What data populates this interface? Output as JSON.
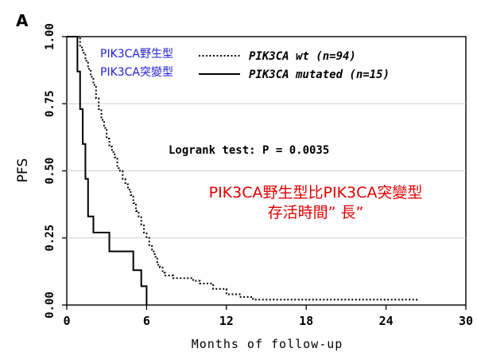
{
  "panel_label": "A",
  "annotation_blue": [
    "PIK3CA野生型",
    "PIK3CA突變型"
  ],
  "annotation_red": [
    "PIK3CA野生型比PIK3CA突變型",
    "存活時間” 長”"
  ],
  "colors": {
    "blue": "#1f1fd6",
    "red": "#e00000",
    "line": "#000000",
    "grid": "#d0d0d0"
  },
  "chart_data": {
    "type": "line",
    "xlabel": "Months of follow-up",
    "ylabel": "PFS",
    "xlim": [
      0,
      30
    ],
    "ylim": [
      0,
      1
    ],
    "xticks": [
      0,
      6,
      12,
      18,
      24,
      30
    ],
    "yticks": [
      0.0,
      0.25,
      0.5,
      0.75,
      1.0
    ],
    "ytick_labels": [
      "0.00",
      "0.25",
      "0.50",
      "0.75",
      "1.00"
    ],
    "grid": true,
    "test_label": "Logrank test: P = 0.0035",
    "legend": [
      {
        "style": "dotted",
        "label": "PIK3CA wt (n=94)"
      },
      {
        "style": "solid",
        "label": "PIK3CA mutated (n=15)"
      }
    ],
    "series": [
      {
        "style": "dotted",
        "x": [
          0,
          0.8,
          1.0,
          1.2,
          1.4,
          1.6,
          1.8,
          2.0,
          2.2,
          2.4,
          2.6,
          2.8,
          3.0,
          3.2,
          3.4,
          3.6,
          3.8,
          4.0,
          4.2,
          4.4,
          4.6,
          4.8,
          5.0,
          5.2,
          5.4,
          5.6,
          5.8,
          6.0,
          6.2,
          6.4,
          6.6,
          6.8,
          7.0,
          7.2,
          7.4,
          7.6,
          8.0,
          8.5,
          9.0,
          9.5,
          10.0,
          11.0,
          12.0,
          12.6,
          13.0,
          14.0,
          15.0,
          17.0,
          20.0,
          24.0,
          26.0,
          26.3
        ],
        "y": [
          1.0,
          1.0,
          0.96,
          0.94,
          0.91,
          0.88,
          0.85,
          0.82,
          0.77,
          0.73,
          0.69,
          0.66,
          0.62,
          0.59,
          0.57,
          0.55,
          0.51,
          0.5,
          0.47,
          0.45,
          0.43,
          0.41,
          0.38,
          0.35,
          0.33,
          0.3,
          0.27,
          0.25,
          0.22,
          0.2,
          0.18,
          0.15,
          0.14,
          0.12,
          0.11,
          0.11,
          0.1,
          0.1,
          0.1,
          0.09,
          0.08,
          0.06,
          0.04,
          0.04,
          0.03,
          0.02,
          0.02,
          0.02,
          0.02,
          0.02,
          0.02,
          0.01
        ]
      },
      {
        "style": "solid",
        "x": [
          0,
          0.6,
          0.8,
          1.0,
          1.2,
          1.4,
          1.6,
          2.0,
          2.6,
          3.2,
          4.0,
          5.0,
          5.6,
          6.0
        ],
        "y": [
          1.0,
          1.0,
          0.87,
          0.73,
          0.6,
          0.47,
          0.33,
          0.27,
          0.27,
          0.2,
          0.2,
          0.13,
          0.07,
          0.0
        ]
      }
    ]
  }
}
